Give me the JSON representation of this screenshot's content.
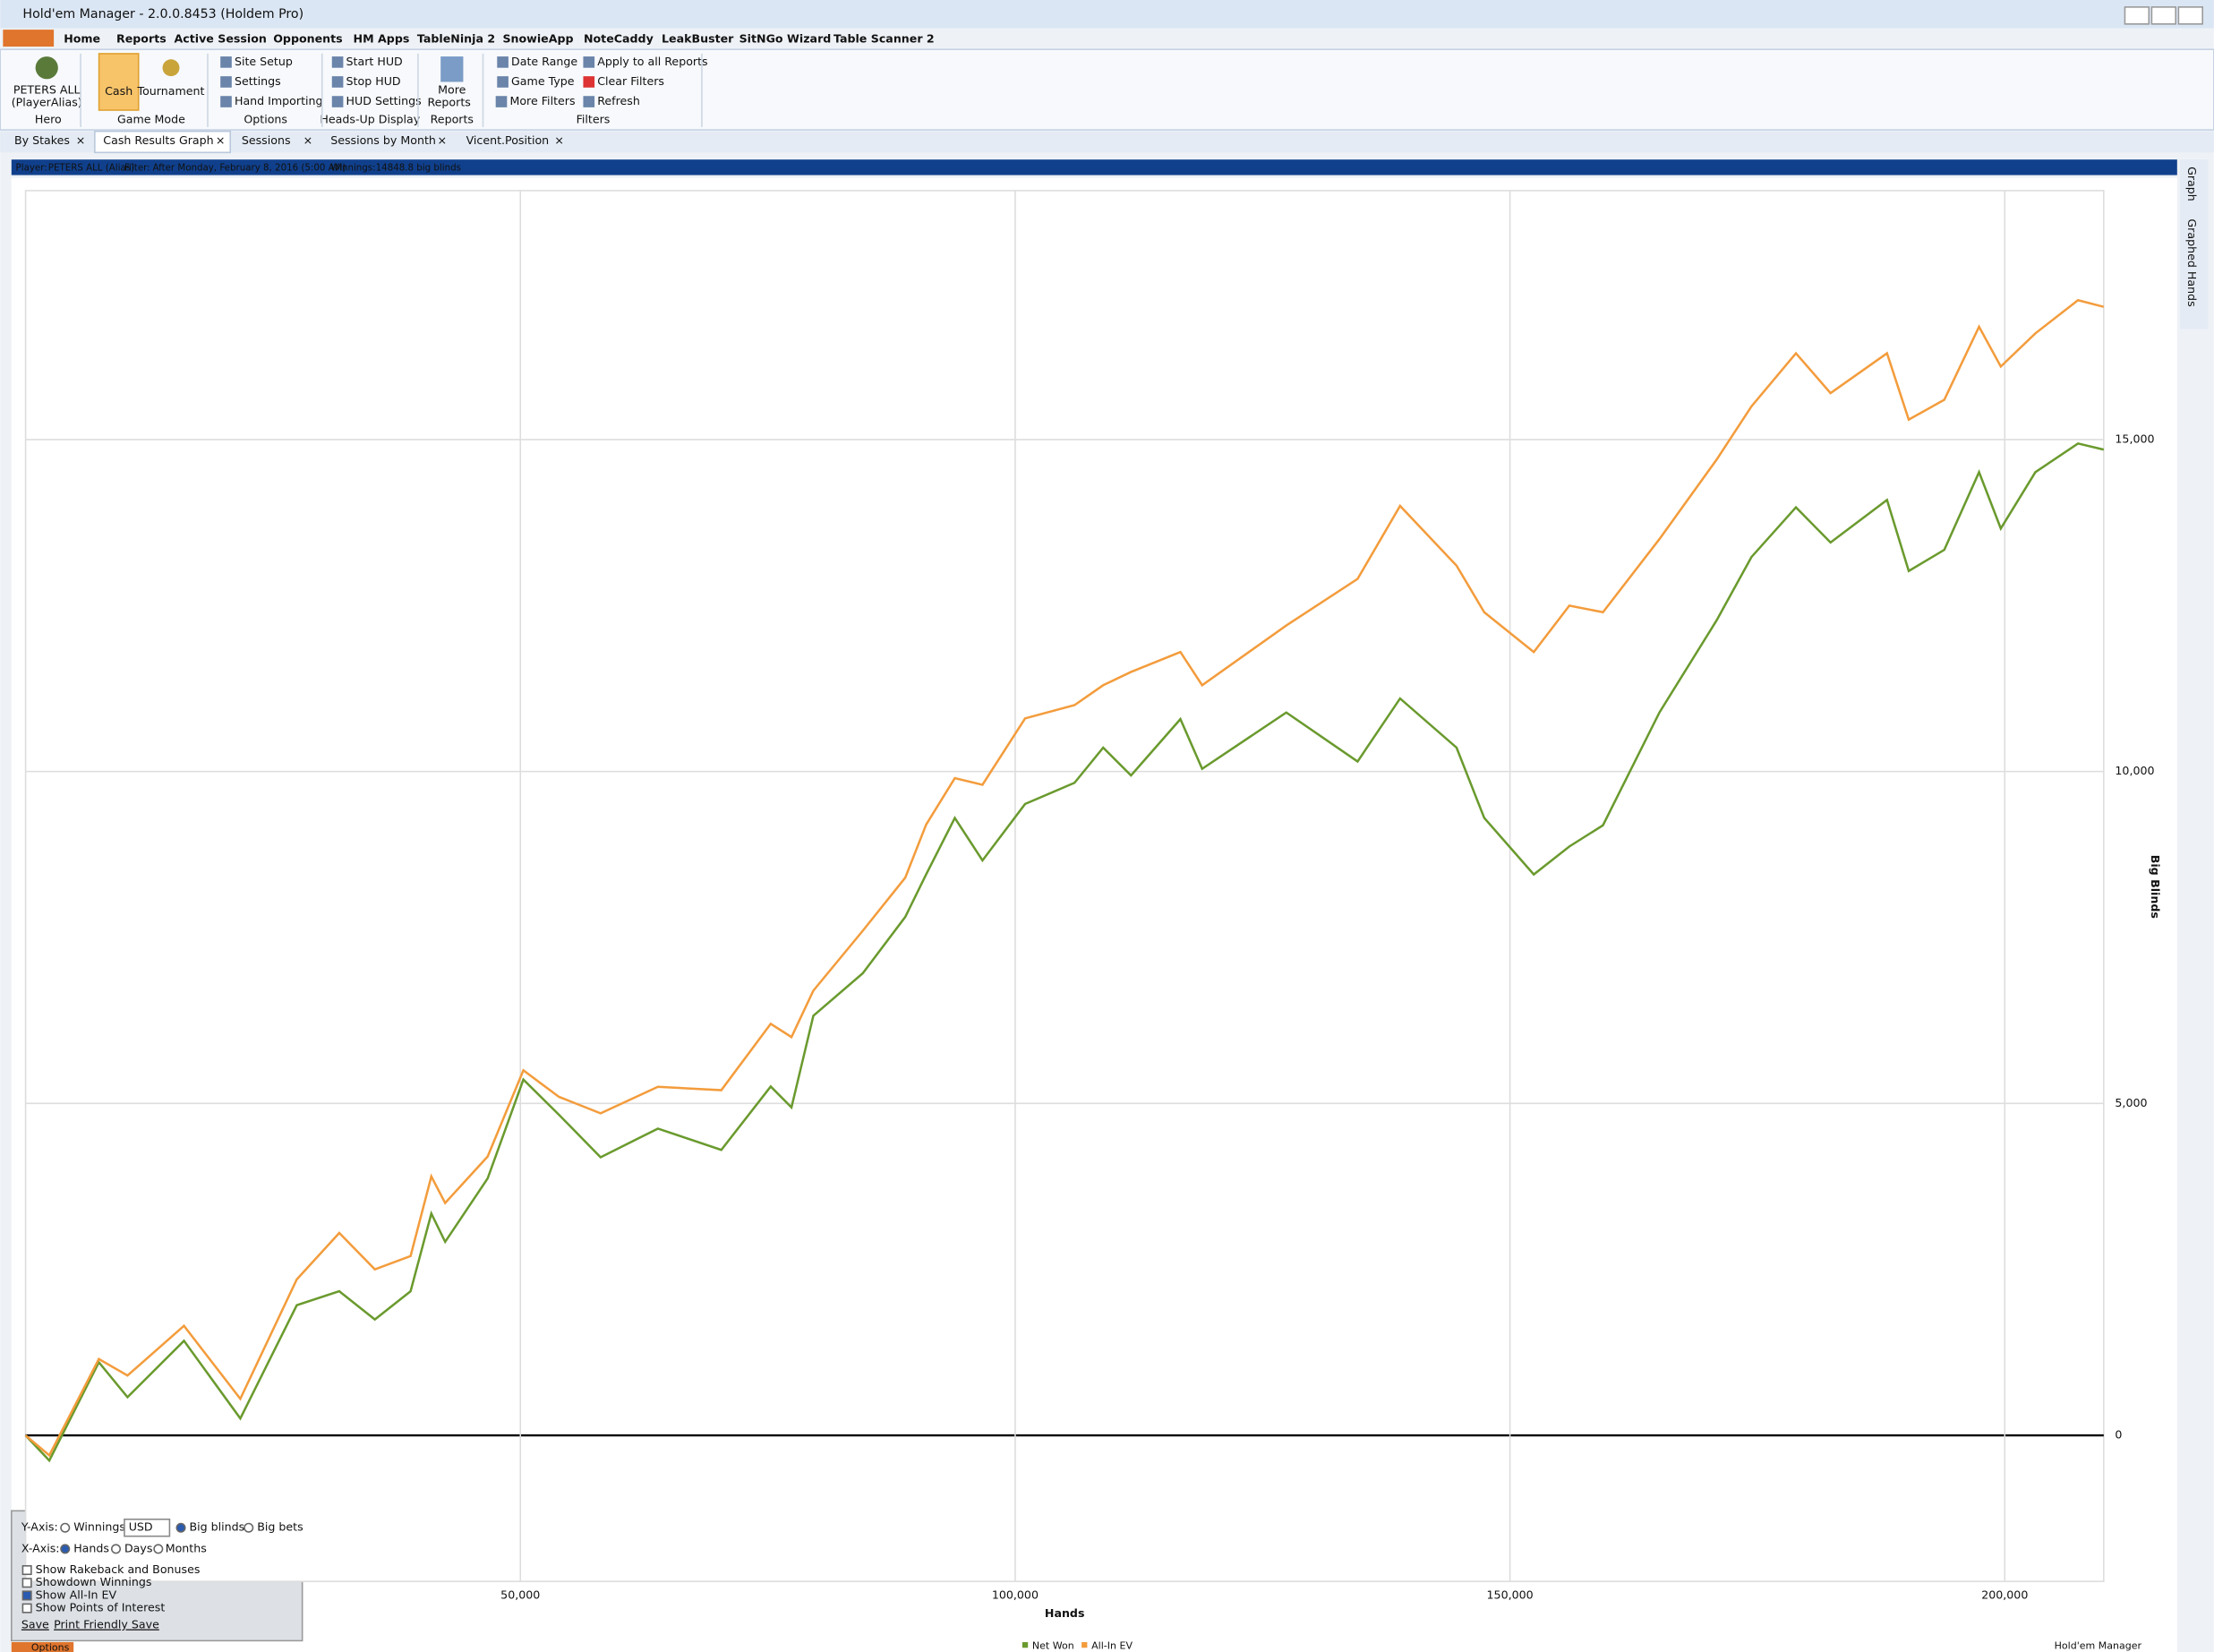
{
  "window": {
    "title": "Hold'em Manager - 2.0.0.8453 (Holdem Pro)"
  },
  "menu": [
    "Home",
    "Reports",
    "Active Session",
    "Opponents",
    "HM Apps",
    "TableNinja 2",
    "SnowieApp",
    "NoteCaddy",
    "LeakBuster",
    "SitNGo Wizard",
    "Table Scanner 2"
  ],
  "ribbon": {
    "hero": [
      "PETERS ALL",
      "(PlayerAlias)"
    ],
    "game_mode": [
      "Cash",
      "Tournament"
    ],
    "options": [
      "Site Setup",
      "Settings",
      "Hand Importing"
    ],
    "hud": [
      "Start HUD",
      "Stop HUD",
      "HUD Settings"
    ],
    "reports": [
      "More",
      "Reports"
    ],
    "filters": [
      "Date Range",
      "Game Type",
      "More Filters",
      "Apply to all Reports",
      "Clear Filters",
      "Refresh"
    ],
    "groups": [
      "Hero",
      "Game Mode",
      "Options",
      "Heads-Up Display",
      "Reports",
      "Filters"
    ]
  },
  "tabs": [
    "By Stakes",
    "Cash Results Graph",
    "Sessions",
    "Sessions by Month",
    "Vicent.Position"
  ],
  "info_bar": {
    "player_label": "Player:",
    "player": "PETERS ALL (Alias)",
    "filter_label": "Filter:",
    "filter": "After Monday, February 8, 2016 (5:00 AM)",
    "winnings_label": "Winnings:",
    "winnings": "14848.8 big blinds"
  },
  "side_tabs": [
    "Graph",
    "Graphed Hands"
  ],
  "options_panel": {
    "y_axis_label": "Y-Axis:",
    "y_options": [
      "Winnings",
      "Big blinds",
      "Big bets"
    ],
    "currency": "USD",
    "x_axis_label": "X-Axis:",
    "x_options": [
      "Hands",
      "Days",
      "Months"
    ],
    "checkboxes": [
      "Show Rakeback and Bonuses",
      "Showdown Winnings",
      "Show All-In EV",
      "Show Points of Interest"
    ],
    "links": [
      "Save",
      "Print Friendly Save"
    ],
    "button": "Options"
  },
  "footer": {
    "brand": "Hold'em Manager"
  },
  "chart_data": {
    "type": "line",
    "x_label": "Hands",
    "y_label": "Big Blinds",
    "grid": true,
    "xlim": [
      0,
      210000
    ],
    "ylim": [
      -2200,
      18750
    ],
    "xticks": [
      {
        "value": 50000,
        "label": "50,000"
      },
      {
        "value": 100000,
        "label": "100,000"
      },
      {
        "value": 150000,
        "label": "150,000"
      },
      {
        "value": 200000,
        "label": "200,000"
      }
    ],
    "yticks": [
      0,
      {
        "value": 5000,
        "label": "5,000"
      },
      {
        "value": 10000,
        "label": "10,000"
      },
      {
        "value": 15000,
        "label": "15,000"
      }
    ],
    "x": [
      0,
      2400,
      7400,
      10300,
      16000,
      21700,
      27400,
      31700,
      35300,
      38900,
      41000,
      42400,
      46700,
      50300,
      53900,
      58100,
      63900,
      70300,
      75300,
      77400,
      79600,
      84600,
      88900,
      91000,
      93900,
      96700,
      101000,
      106000,
      108900,
      111700,
      116700,
      118900,
      127400,
      134600,
      138900,
      144600,
      147400,
      152400,
      156000,
      159400,
      165100,
      170900,
      174400,
      178900,
      182400,
      188100,
      190300,
      193900,
      197400,
      199600,
      203100,
      207400,
      210000
    ],
    "series": [
      {
        "name": "Net Won",
        "color": "#6a9a2e",
        "values": [
          0,
          -380,
          1100,
          575,
          1425,
          255,
          1960,
          2170,
          1745,
          2170,
          3340,
          2915,
          3870,
          5360,
          4830,
          4190,
          4620,
          4300,
          5255,
          4940,
          6320,
          6960,
          7810,
          8450,
          9300,
          8660,
          9510,
          9830,
          10360,
          9940,
          10790,
          10040,
          10890,
          10150,
          11100,
          10360,
          9300,
          8450,
          8870,
          9190,
          10890,
          12280,
          13230,
          13980,
          13450,
          14090,
          13020,
          13340,
          14510,
          13660,
          14510,
          14940,
          14849
        ]
      },
      {
        "name": "All-In EV",
        "color": "#f39c3c",
        "values": [
          0,
          -300,
          1150,
          900,
          1650,
          550,
          2350,
          3050,
          2500,
          2700,
          3900,
          3500,
          4200,
          5500,
          5100,
          4850,
          5250,
          5200,
          6200,
          6000,
          6700,
          7600,
          8400,
          9200,
          9900,
          9800,
          10800,
          11000,
          11300,
          11500,
          11800,
          11300,
          12200,
          12900,
          14000,
          13100,
          12400,
          11800,
          12500,
          12400,
          13500,
          14700,
          15500,
          16300,
          15700,
          16300,
          15300,
          15600,
          16700,
          16100,
          16600,
          17100,
          17000
        ]
      }
    ]
  }
}
